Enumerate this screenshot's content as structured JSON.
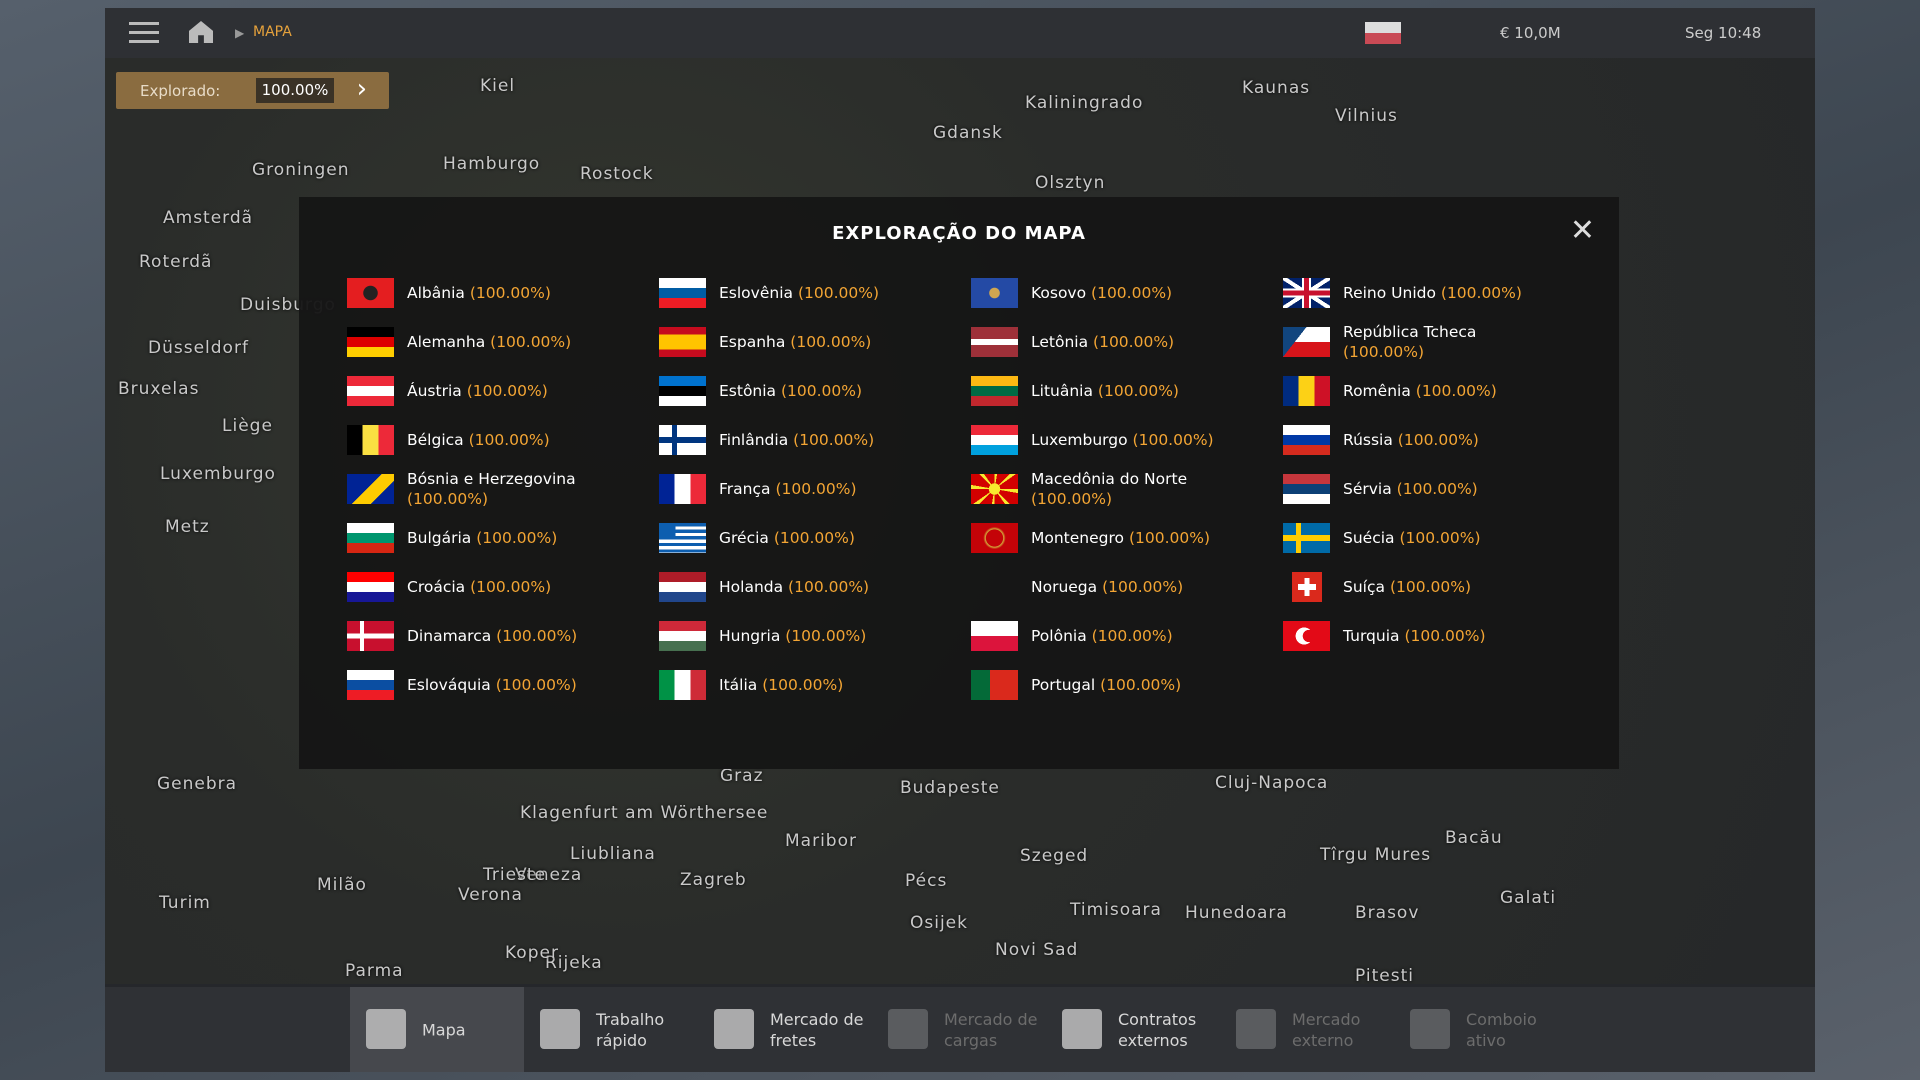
{
  "top_bar": {
    "breadcrumb": "MAPA",
    "money": "€ 10,0M",
    "time": "Seg 10:48"
  },
  "explored": {
    "label": "Explorado:",
    "value": "100.00%"
  },
  "dialog": {
    "title": "EXPLORAÇÃO DO MAPA",
    "countries": [
      {
        "name": "Albânia",
        "progress": "(100.00%)"
      },
      {
        "name": "Alemanha",
        "progress": "(100.00%)"
      },
      {
        "name": "Áustria",
        "progress": "(100.00%)"
      },
      {
        "name": "Bélgica",
        "progress": "(100.00%)"
      },
      {
        "name": "Bósnia e Herzegovina",
        "progress": "(100.00%)"
      },
      {
        "name": "Bulgária",
        "progress": "(100.00%)"
      },
      {
        "name": "Croácia",
        "progress": "(100.00%)"
      },
      {
        "name": "Dinamarca",
        "progress": "(100.00%)"
      },
      {
        "name": "Eslováquia",
        "progress": "(100.00%)"
      },
      {
        "name": "Eslovênia",
        "progress": "(100.00%)"
      },
      {
        "name": "Espanha",
        "progress": "(100.00%)"
      },
      {
        "name": "Estônia",
        "progress": "(100.00%)"
      },
      {
        "name": "Finlândia",
        "progress": "(100.00%)"
      },
      {
        "name": "França",
        "progress": "(100.00%)"
      },
      {
        "name": "Grécia",
        "progress": "(100.00%)"
      },
      {
        "name": "Holanda",
        "progress": "(100.00%)"
      },
      {
        "name": "Hungria",
        "progress": "(100.00%)"
      },
      {
        "name": "Itália",
        "progress": "(100.00%)"
      },
      {
        "name": "Kosovo",
        "progress": "(100.00%)"
      },
      {
        "name": "Letônia",
        "progress": "(100.00%)"
      },
      {
        "name": "Lituânia",
        "progress": "(100.00%)"
      },
      {
        "name": "Luxemburgo",
        "progress": "(100.00%)"
      },
      {
        "name": "Macedônia do Norte",
        "progress": "(100.00%)"
      },
      {
        "name": "Montenegro",
        "progress": "(100.00%)"
      },
      {
        "name": "Noruega",
        "progress": "(100.00%)"
      },
      {
        "name": "Polônia",
        "progress": "(100.00%)"
      },
      {
        "name": "Portugal",
        "progress": "(100.00%)"
      },
      {
        "name": "Reino Unido",
        "progress": "(100.00%)"
      },
      {
        "name": "República Tcheca",
        "progress": "(100.00%)"
      },
      {
        "name": "Romênia",
        "progress": "(100.00%)"
      },
      {
        "name": "Rússia",
        "progress": "(100.00%)"
      },
      {
        "name": "Sérvia",
        "progress": "(100.00%)"
      },
      {
        "name": "Suécia",
        "progress": "(100.00%)"
      },
      {
        "name": "Suíça",
        "progress": "(100.00%)"
      },
      {
        "name": "Turquia",
        "progress": "(100.00%)"
      }
    ]
  },
  "map_labels": [
    "Kiel",
    "Kaliningrado",
    "Kaunas",
    "Vilnius",
    "Gdansk",
    "Groningen",
    "Hamburgo",
    "Rostock",
    "Amsterdã",
    "Roterdã",
    "Olsztyn",
    "Duisburgo",
    "Düsseldorf",
    "Bruxelas",
    "Liège",
    "Luxemburgo",
    "Metz",
    "Genebra",
    "Turim",
    "Milão",
    "Verona",
    "Veneza",
    "Trieste",
    "Liubliana",
    "Zagreb",
    "Rijeka",
    "Klagenfurt am Wörthersee",
    "Budapeste",
    "Szeged",
    "Pécs",
    "Osijek",
    "Novi Sad",
    "Timisoara",
    "Cluj-Napoca",
    "Tîrgu Mures",
    "Bacău",
    "Brasov",
    "Galati",
    "Pitesti",
    "Hunedoara",
    "Parma",
    "Koper",
    "Graz",
    "Maribor"
  ],
  "nav": [
    {
      "label": "Mapa",
      "state": "active"
    },
    {
      "label": "Trabalho rápido",
      "state": "enabled"
    },
    {
      "label": "Mercado de fretes",
      "state": "enabled"
    },
    {
      "label": "Mercado de cargas",
      "state": "disabled"
    },
    {
      "label": "Contratos externos",
      "state": "enabled"
    },
    {
      "label": "Mercado externo",
      "state": "disabled"
    },
    {
      "label": "Comboio ativo",
      "state": "disabled"
    }
  ]
}
